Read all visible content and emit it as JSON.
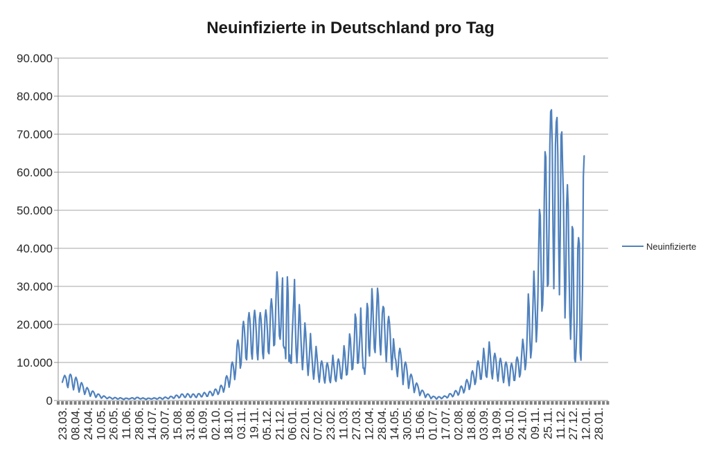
{
  "chart_data": {
    "type": "line",
    "title": "Neuinfizierte in Deutschland pro Tag",
    "grid": true,
    "legend": {
      "position": "right",
      "entries": [
        "Neuinfizierte"
      ]
    },
    "x_axis": {
      "tick_labels": [
        "23.03.",
        "08.04.",
        "24.04.",
        "10.05.",
        "26.05.",
        "11.06.",
        "28.06.",
        "14.07.",
        "30.07.",
        "15.08.",
        "31.08.",
        "16.09.",
        "02.10.",
        "18.10.",
        "03.11.",
        "19.11.",
        "05.12.",
        "21.12.",
        "06.01.",
        "22.01.",
        "07.02.",
        "23.02.",
        "11.03.",
        "27.03.",
        "12.04.",
        "28.04.",
        "14.05.",
        "30.05.",
        "15.06.",
        "01.07.",
        "17.07.",
        "02.08.",
        "18.08.",
        "03.09.",
        "19.09.",
        "05.10.",
        "24.10.",
        "09.11.",
        "25.11.",
        "11.12.",
        "27.12.",
        "12.01.",
        "28.01."
      ]
    },
    "y_axis": {
      "min": 0,
      "max": 90000,
      "step": 10000,
      "tick_labels": [
        "0",
        "10.000",
        "20.000",
        "30.000",
        "40.000",
        "50.000",
        "60.000",
        "70.000",
        "80.000",
        "90.000"
      ]
    },
    "series": [
      {
        "name": "Neuinfizierte",
        "color": "#4F81BD",
        "frequency": "daily",
        "values": [
          4800,
          5500,
          6200,
          6600,
          6200,
          5600,
          4000,
          3400,
          4800,
          6500,
          6900,
          6600,
          5500,
          3900,
          2800,
          4000,
          5600,
          6100,
          5600,
          4700,
          3300,
          2200,
          3100,
          4300,
          4700,
          4300,
          3600,
          2500,
          1600,
          2200,
          3100,
          3400,
          3100,
          2600,
          1800,
          1100,
          1600,
          2300,
          2500,
          2300,
          1900,
          1300,
          800,
          1100,
          1600,
          1700,
          1600,
          1300,
          900,
          600,
          800,
          1100,
          1200,
          1100,
          900,
          700,
          500,
          600,
          800,
          900,
          800,
          700,
          500,
          400,
          500,
          700,
          800,
          700,
          600,
          400,
          400,
          500,
          700,
          700,
          600,
          500,
          400,
          300,
          400,
          600,
          600,
          600,
          500,
          400,
          400,
          500,
          600,
          700,
          700,
          600,
          400,
          400,
          600,
          800,
          800,
          800,
          600,
          500,
          400,
          500,
          600,
          700,
          600,
          500,
          400,
          300,
          400,
          600,
          600,
          600,
          500,
          400,
          400,
          500,
          600,
          700,
          600,
          600,
          400,
          400,
          500,
          700,
          800,
          700,
          600,
          400,
          400,
          600,
          800,
          900,
          800,
          700,
          500,
          500,
          700,
          1000,
          1100,
          1000,
          900,
          600,
          600,
          900,
          1300,
          1400,
          1300,
          1100,
          700,
          800,
          1100,
          1600,
          1700,
          1600,
          1300,
          900,
          800,
          1100,
          1600,
          1800,
          1600,
          1400,
          900,
          800,
          1100,
          1600,
          1700,
          1600,
          1300,
          900,
          800,
          1200,
          1700,
          1800,
          1700,
          1400,
          1000,
          1000,
          1400,
          1900,
          2100,
          1900,
          1600,
          1100,
          1100,
          1600,
          2200,
          2400,
          2200,
          1900,
          1300,
          1400,
          2000,
          2800,
          3000,
          2800,
          2300,
          1600,
          1900,
          2600,
          3700,
          4000,
          3700,
          3100,
          2200,
          3000,
          4300,
          6000,
          6500,
          6000,
          5000,
          3500,
          4700,
          6600,
          9400,
          10100,
          9400,
          7800,
          5500,
          7300,
          10400,
          14600,
          15900,
          14600,
          12200,
          8500,
          9600,
          13600,
          19200,
          20800,
          19200,
          16000,
          11200,
          10700,
          15100,
          21400,
          23100,
          21400,
          17800,
          12500,
          10900,
          15500,
          21800,
          23700,
          21800,
          18200,
          12700,
          10700,
          15100,
          21400,
          23100,
          21400,
          17800,
          12500,
          11000,
          15600,
          22000,
          23800,
          22000,
          18300,
          12800,
          12300,
          17400,
          24600,
          26700,
          24600,
          20500,
          14400,
          14700,
          20800,
          28400,
          33800,
          31000,
          24000,
          17000,
          16100,
          19500,
          27500,
          32200,
          14500,
          13800,
          13900,
          11000,
          22500,
          32500,
          28000,
          10300,
          12000,
          9900,
          9800,
          17000,
          21500,
          26400,
          31800,
          20000,
          13000,
          9900,
          14000,
          19600,
          25200,
          22300,
          16500,
          11600,
          8100,
          11500,
          15900,
          20400,
          17800,
          13500,
          9500,
          6600,
          9400,
          13200,
          17600,
          14000,
          11000,
          7700,
          5600,
          7900,
          11000,
          14200,
          12000,
          9300,
          6500,
          4800,
          6800,
          9600,
          10400,
          9600,
          8000,
          5600,
          4600,
          6500,
          9100,
          9900,
          9100,
          7600,
          5300,
          4700,
          6700,
          9000,
          11900,
          9900,
          7900,
          5500,
          5000,
          7100,
          10100,
          10900,
          10100,
          8400,
          5900,
          5700,
          8100,
          11000,
          14400,
          12700,
          9500,
          6700,
          6900,
          9800,
          13400,
          17500,
          16300,
          12000,
          8100,
          8400,
          11900,
          15800,
          22700,
          21600,
          17000,
          9800,
          9900,
          13200,
          17100,
          24300,
          18100,
          12200,
          8500,
          8500,
          6900,
          9700,
          20400,
          25500,
          24100,
          14000,
          11700,
          16600,
          21700,
          29400,
          25800,
          19500,
          13700,
          12600,
          17900,
          24200,
          29500,
          27500,
          21000,
          14700,
          12000,
          17000,
          22900,
          24700,
          24300,
          18900,
          14000,
          10200,
          14500,
          20400,
          22100,
          20400,
          17000,
          11900,
          8100,
          11500,
          16200,
          14000,
          11300,
          10500,
          8000,
          6300,
          8900,
          12600,
          13700,
          12600,
          10500,
          7400,
          4200,
          6600,
          9400,
          10100,
          9400,
          7800,
          5500,
          3200,
          4500,
          6400,
          6900,
          6400,
          5300,
          3700,
          2100,
          3000,
          4200,
          4600,
          4200,
          3500,
          2500,
          1300,
          1800,
          2500,
          2700,
          2500,
          2100,
          1500,
          800,
          1100,
          1600,
          1700,
          1600,
          1300,
          900,
          500,
          700,
          1000,
          1100,
          1000,
          900,
          600,
          400,
          600,
          900,
          1000,
          900,
          800,
          500,
          600,
          800,
          1100,
          1200,
          1100,
          1000,
          700,
          800,
          1200,
          1700,
          1800,
          1700,
          1400,
          1000,
          1200,
          1700,
          2400,
          2600,
          2400,
          2000,
          1400,
          1700,
          2500,
          3500,
          3800,
          3500,
          2900,
          2000,
          2500,
          3600,
          5000,
          5500,
          5000,
          4200,
          2900,
          3600,
          5100,
          7200,
          7800,
          7200,
          6000,
          4200,
          4800,
          6800,
          9600,
          10400,
          9600,
          8000,
          5600,
          5600,
          7900,
          10500,
          13700,
          11800,
          9300,
          6500,
          6100,
          8700,
          12000,
          15400,
          13000,
          10200,
          7100,
          5700,
          8100,
          11400,
          12400,
          11400,
          9500,
          6700,
          5100,
          7200,
          10200,
          11100,
          10200,
          8500,
          6000,
          4700,
          6600,
          9400,
          10100,
          9400,
          7800,
          5500,
          3900,
          6400,
          9000,
          9800,
          9000,
          7500,
          5300,
          5300,
          7500,
          10600,
          11400,
          10600,
          8800,
          6200,
          6900,
          9800,
          13200,
          16100,
          14500,
          11500,
          8100,
          9600,
          13600,
          20400,
          28000,
          24700,
          16000,
          11200,
          13200,
          18700,
          26400,
          34000,
          28500,
          22000,
          15400,
          19200,
          27200,
          39700,
          50200,
          48600,
          35000,
          23500,
          25200,
          32000,
          52800,
          65400,
          63900,
          45000,
          30000,
          30600,
          45300,
          66900,
          75900,
          76400,
          67100,
          44400,
          29400,
          45800,
          67200,
          73200,
          74400,
          64500,
          42100,
          27800,
          43000,
          69600,
          70600,
          61300,
          53700,
          37100,
          21700,
          30800,
          51300,
          56700,
          51000,
          35000,
          22700,
          16100,
          23400,
          45700,
          44900,
          26000,
          11000,
          10100,
          13900,
          21100,
          40000,
          42800,
          41200,
          12500,
          10600,
          18500,
          30600,
          58900,
          64300
        ]
      }
    ]
  },
  "colors": {
    "line": "#4F81BD",
    "gridline": "#A6A6A6",
    "axis": "#8F8F8F",
    "minor_tick": "#7F7F7F",
    "text": "#262626",
    "background": "#FFFFFF"
  }
}
